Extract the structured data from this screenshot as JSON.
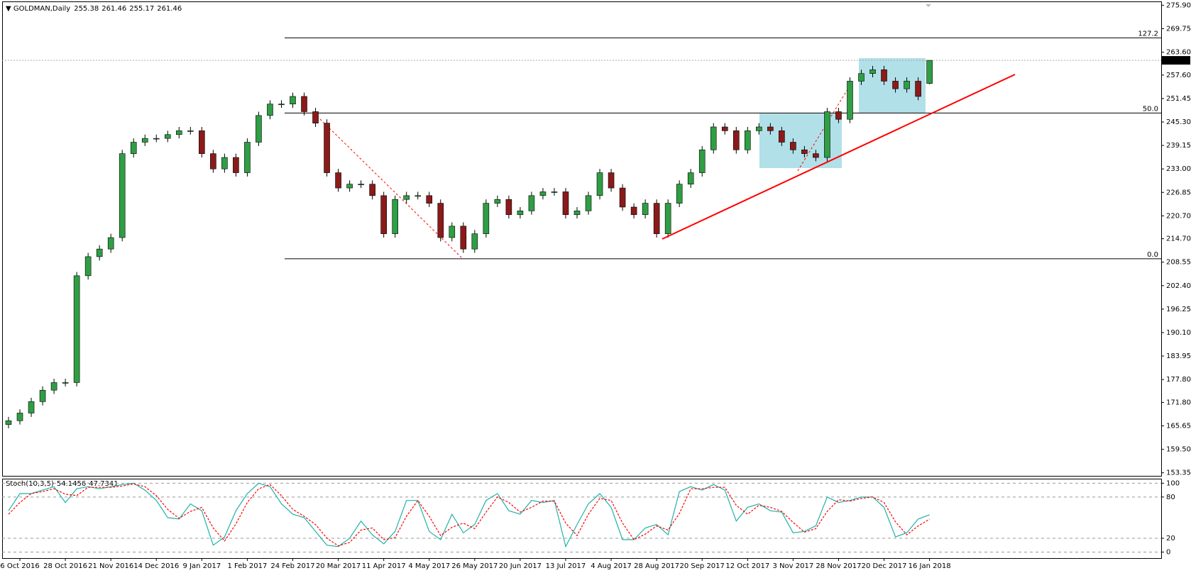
{
  "chart_data": [
    {
      "type": "candlestick",
      "title": "GOLDMAN,Daily",
      "categories": [
        null,
        "6 Oct 2016",
        null,
        null,
        null,
        "28 Oct 2016",
        null,
        null,
        null,
        "21 Nov 2016",
        null,
        null,
        null,
        "14 Dec 2016",
        null,
        null,
        null,
        "9 Jan 2017",
        null,
        null,
        null,
        "1 Feb 2017",
        null,
        null,
        null,
        "24 Feb 2017",
        null,
        null,
        null,
        "20 Mar 2017",
        null,
        null,
        null,
        "11 Apr 2017",
        null,
        null,
        null,
        "4 May 2017",
        null,
        null,
        null,
        "26 May 2017",
        null,
        null,
        null,
        "20 Jun 2017",
        null,
        null,
        null,
        "13 Jul 2017",
        null,
        null,
        null,
        "4 Aug 2017",
        null,
        null,
        null,
        "28 Aug 2017",
        null,
        null,
        null,
        "20 Sep 2017",
        null,
        null,
        null,
        "12 Oct 2017",
        null,
        null,
        null,
        "3 Nov 2017",
        null,
        null,
        null,
        "28 Nov 2017",
        null,
        null,
        null,
        "20 Dec 2017",
        null,
        null,
        null,
        "16 Jan 2018"
      ],
      "open": [
        166,
        167,
        169,
        172,
        175,
        177,
        177,
        205,
        210,
        212,
        215,
        237,
        240,
        241,
        241,
        242,
        243,
        243,
        237,
        233,
        236,
        232,
        240,
        247,
        250,
        250,
        252,
        248,
        245,
        232,
        228,
        229,
        229,
        226,
        216,
        225,
        226,
        226,
        224,
        215,
        218,
        212,
        216,
        224,
        225,
        221,
        222,
        226,
        227,
        227,
        221,
        222,
        226,
        232,
        228,
        223,
        221,
        224,
        216,
        224,
        229,
        232,
        238,
        244,
        243,
        238,
        243,
        244,
        243,
        240,
        238,
        237,
        236,
        248,
        246,
        256,
        258,
        259,
        256,
        254,
        256,
        255.38
      ],
      "high": [
        168,
        170,
        173,
        176,
        178,
        178,
        206,
        211,
        213,
        216,
        238,
        241,
        242,
        242,
        243,
        244,
        244,
        244,
        238,
        237,
        237,
        241,
        248,
        251,
        251,
        253,
        253,
        249,
        246,
        233,
        230,
        230,
        230,
        227,
        226,
        227,
        227,
        227,
        225,
        219,
        219,
        217,
        225,
        226,
        226,
        223,
        227,
        228,
        228,
        228,
        223,
        227,
        233,
        233,
        229,
        224,
        225,
        225,
        225,
        230,
        233,
        239,
        245,
        245,
        244,
        244,
        245,
        245,
        244,
        241,
        239,
        238,
        249,
        249,
        257,
        259,
        260,
        260,
        257,
        257,
        257,
        261.46
      ],
      "low": [
        165,
        166,
        168,
        171,
        174,
        176,
        176,
        204,
        209,
        211,
        214,
        236,
        239,
        240,
        240,
        241,
        242,
        236,
        232,
        232,
        231,
        231,
        239,
        246,
        249,
        249,
        247,
        244,
        231,
        227,
        227,
        228,
        225,
        215,
        215,
        224,
        225,
        223,
        214,
        214,
        211,
        211,
        215,
        223,
        220,
        220,
        221,
        225,
        226,
        220,
        220,
        221,
        225,
        227,
        222,
        220,
        220,
        215,
        215,
        223,
        228,
        231,
        237,
        242,
        237,
        237,
        242,
        242,
        239,
        237,
        236,
        235,
        235,
        245,
        245,
        255,
        257,
        255,
        253,
        253,
        251,
        255.17
      ],
      "close": [
        167,
        169,
        172,
        175,
        177,
        177,
        205,
        210,
        212,
        215,
        237,
        240,
        241,
        241,
        242,
        243,
        243,
        237,
        233,
        236,
        232,
        240,
        247,
        250,
        250,
        252,
        248,
        245,
        232,
        228,
        229,
        229,
        226,
        216,
        225,
        226,
        226,
        224,
        215,
        218,
        212,
        216,
        224,
        225,
        221,
        222,
        226,
        227,
        227,
        221,
        222,
        226,
        232,
        228,
        223,
        221,
        224,
        216,
        224,
        229,
        232,
        238,
        244,
        243,
        238,
        243,
        244,
        243,
        240,
        238,
        237,
        236,
        248,
        246,
        256,
        258,
        259,
        256,
        254,
        256,
        252,
        261.46
      ],
      "up_color": "#2f9e44",
      "down_color": "#8b1a1a",
      "ylim": [
        152.55,
        276.9
      ],
      "yticks": [
        {
          "value": 275.9,
          "label": "275.90"
        },
        269.75,
        {
          "value": 263.6,
          "label": "263.60"
        },
        {
          "value": 257.6,
          "label": "257.60"
        },
        251.45,
        {
          "value": 245.3,
          "label": "245.30"
        },
        239.15,
        {
          "value": 233,
          "label": "233.00"
        },
        226.85,
        {
          "value": 220.7,
          "label": "220.70"
        },
        {
          "value": 214.7,
          "label": "214.70"
        },
        208.55,
        {
          "value": 202.4,
          "label": "202.40"
        },
        196.25,
        {
          "value": 190.1,
          "label": "190.10"
        },
        183.95,
        {
          "value": 177.8,
          "label": "177.80"
        },
        {
          "value": 171.8,
          "label": "171.80"
        },
        165.65,
        {
          "value": 159.5,
          "label": "159.50"
        },
        153.35
      ],
      "levels": [
        {
          "label": "127.2",
          "value": 267.35
        },
        {
          "label": "50.0",
          "value": 247.65
        },
        {
          "label": "0.0",
          "value": 209.45
        }
      ]
    },
    {
      "type": "line",
      "title": "Stoch(10,3,5)",
      "series": [
        {
          "color": "#20b2aa",
          "dashed": false,
          "values": [
            60,
            85,
            85,
            90,
            95,
            72,
            92,
            95,
            92,
            95,
            98,
            100,
            90,
            75,
            50,
            48,
            70,
            60,
            10,
            22,
            60,
            85,
            100,
            95,
            70,
            55,
            50,
            30,
            10,
            8,
            20,
            45,
            25,
            12,
            30,
            75,
            75,
            30,
            18,
            55,
            28,
            40,
            75,
            85,
            60,
            55,
            75,
            72,
            75,
            8,
            40,
            70,
            85,
            65,
            18,
            18,
            35,
            40,
            25,
            88,
            95,
            90,
            98,
            90,
            45,
            65,
            70,
            60,
            58,
            28,
            30,
            38,
            80,
            72,
            75,
            80,
            80,
            65,
            22,
            28,
            48,
            54.1456
          ]
        },
        {
          "color": "#ff0000",
          "dashed": true,
          "values": [
            55,
            72,
            85,
            88,
            92,
            84,
            82,
            94,
            94,
            94,
            96,
            99,
            95,
            82,
            62,
            49,
            59,
            65,
            35,
            16,
            41,
            72,
            92,
            98,
            82,
            62,
            52,
            40,
            20,
            9,
            14,
            32,
            35,
            18,
            21,
            52,
            75,
            52,
            24,
            36,
            42,
            34,
            58,
            80,
            72,
            58,
            65,
            74,
            74,
            42,
            24,
            55,
            78,
            75,
            42,
            18,
            26,
            38,
            32,
            56,
            92,
            92,
            94,
            94,
            68,
            55,
            68,
            65,
            59,
            43,
            29,
            34,
            59,
            76,
            74,
            78,
            80,
            72,
            44,
            25,
            38,
            47.7341
          ]
        }
      ],
      "ylim": [
        -8.8,
        106.6
      ],
      "yticks": [
        0,
        20,
        80,
        100
      ]
    }
  ]
}
